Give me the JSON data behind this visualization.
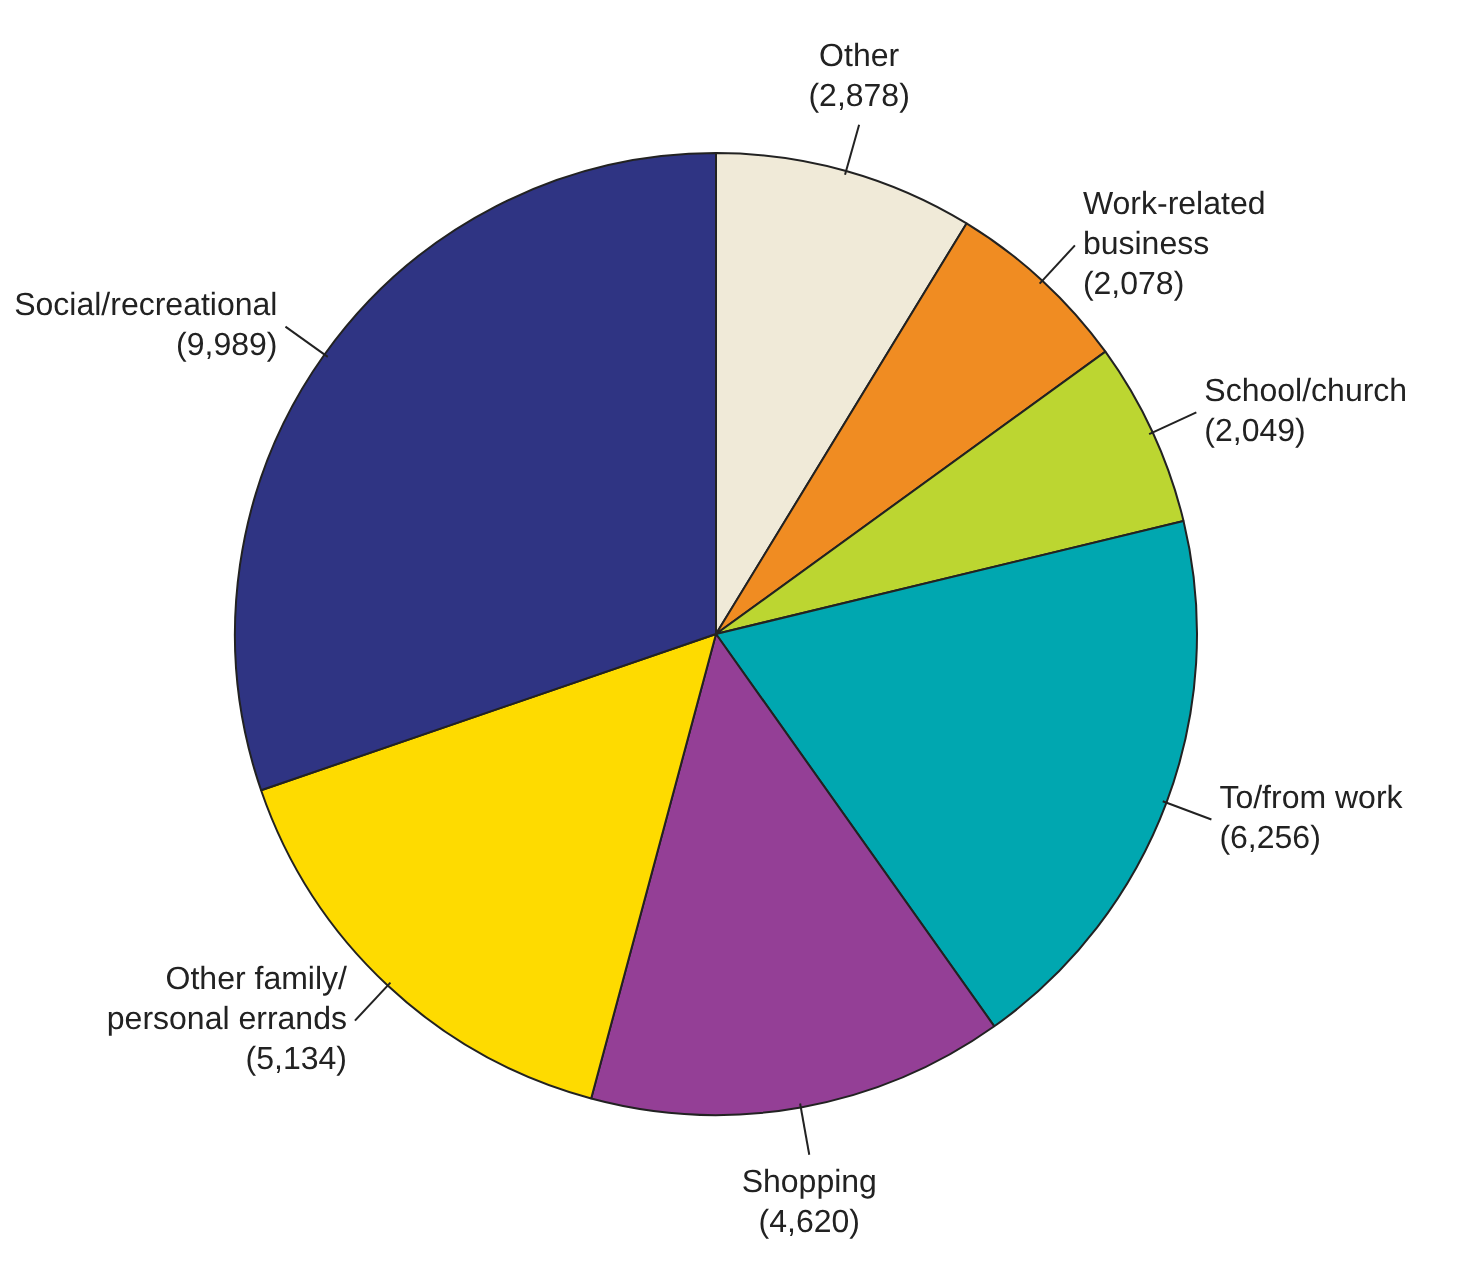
{
  "chart_data": {
    "type": "pie",
    "categories": [
      "Other",
      "Work-related\nbusiness",
      "School/church",
      "To/from work",
      "Shopping",
      "Other family/\npersonal errands",
      "Social/recreational"
    ],
    "values": [
      2878,
      2078,
      2049,
      6256,
      4620,
      5134,
      9989
    ],
    "colors": [
      "#f0ead8",
      "#f08c22",
      "#bcd631",
      "#00a7b0",
      "#943f96",
      "#fedb00",
      "#2f3483"
    ],
    "value_labels": [
      "(2,878)",
      "(2,078)",
      "(2,049)",
      "(6,256)",
      "(4,620)",
      "(5,134)",
      "(9,989)"
    ],
    "legend": false
  }
}
